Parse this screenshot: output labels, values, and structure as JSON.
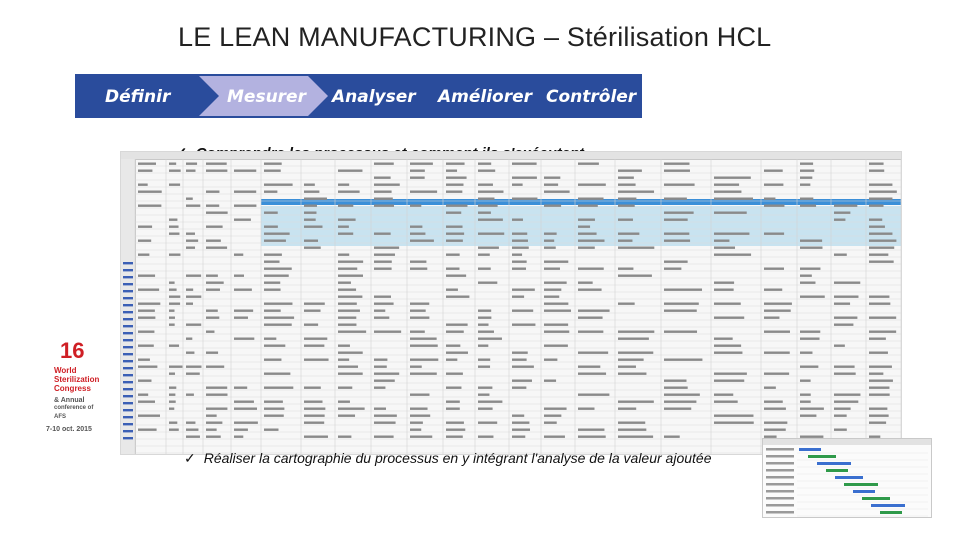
{
  "slide": {
    "title": "LE LEAN MANUFACTURING – Stérilisation HCL",
    "steps": [
      {
        "label": "Définir",
        "state": "done"
      },
      {
        "label": "Mesurer",
        "state": "active"
      },
      {
        "label": "Analyser",
        "state": "todo"
      },
      {
        "label": "Améliorer",
        "state": "todo"
      },
      {
        "label": "Contrôler",
        "state": "todo"
      }
    ],
    "colors": {
      "step_dark": "#2a4c9c",
      "step_light": "#b3b2e0",
      "step_active_text": "#e8202a"
    },
    "bullets": [
      "Comprendre les processus et comment ils s'exécutent",
      "Réaliser la cartographie du processus en y intégrant l'analyse de la valeur ajoutée"
    ],
    "logo": {
      "number": "16",
      "lines": [
        "World",
        "Sterilization",
        "Congress",
        "& Annual",
        "conference of AFS"
      ],
      "dates": "7-10 oct. 2015"
    }
  }
}
